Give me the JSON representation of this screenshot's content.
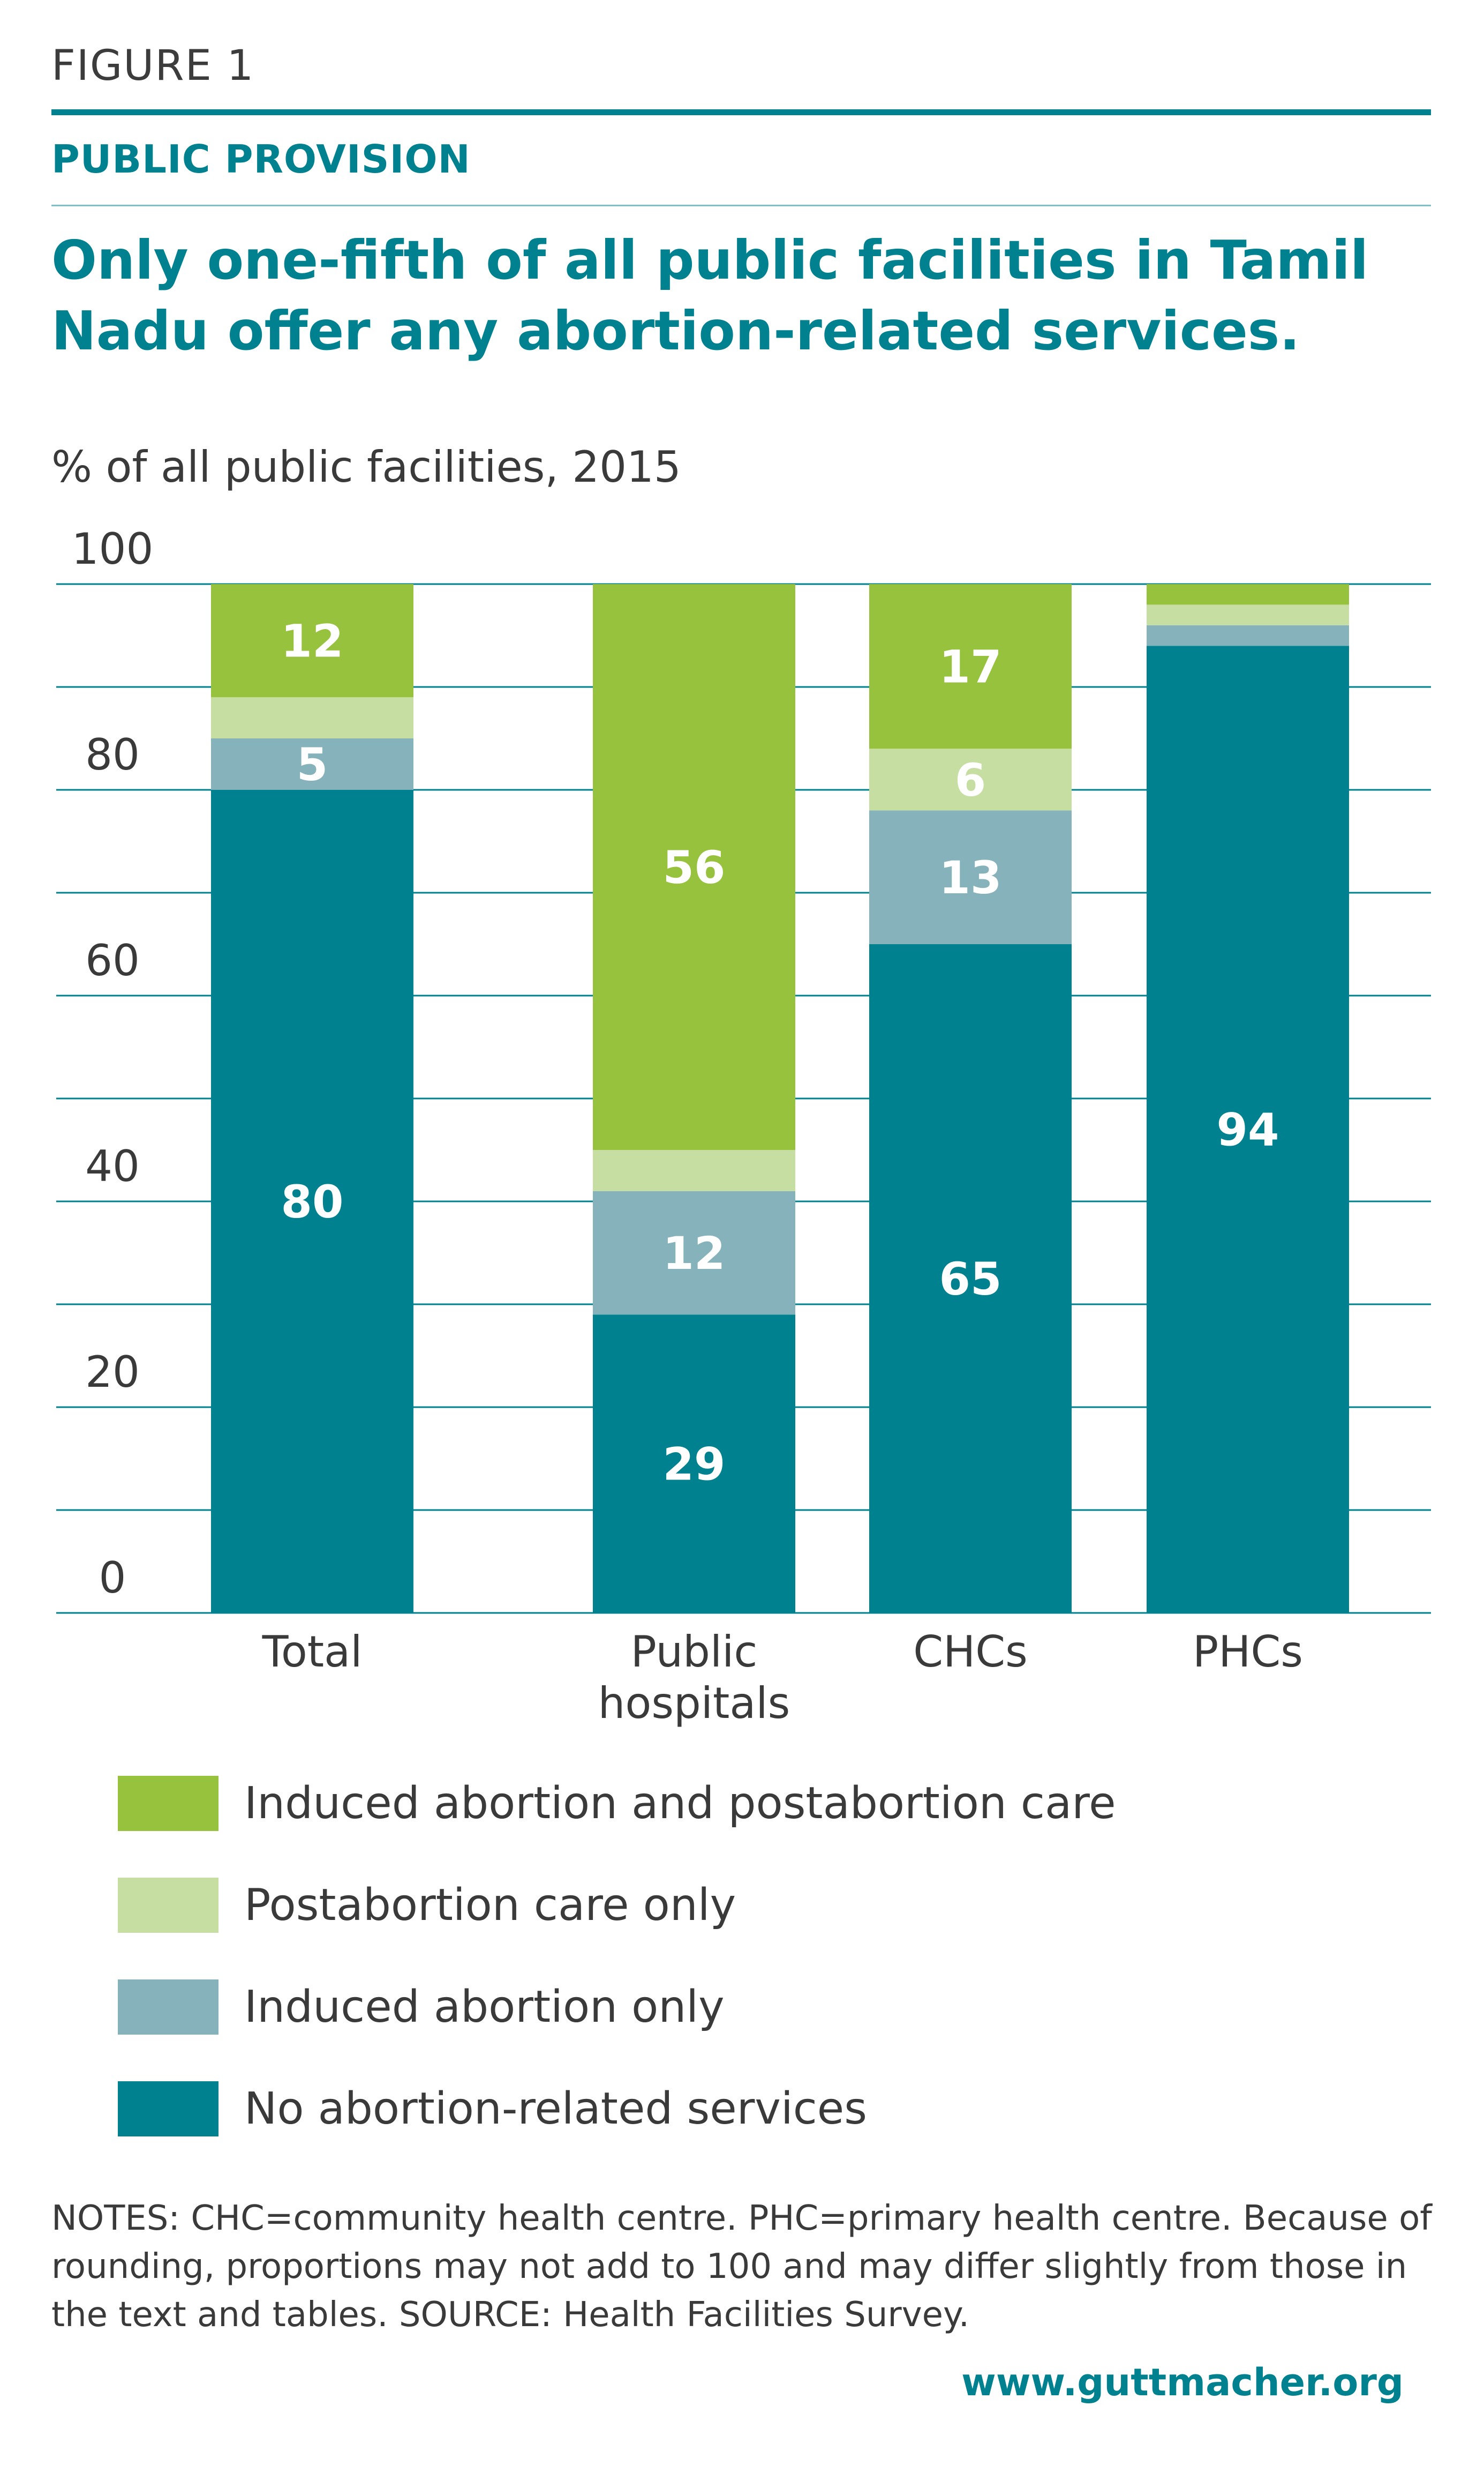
{
  "header": {
    "figure_label": "FIGURE 1",
    "kicker": "PUBLIC PROVISION",
    "title": "Only one-fifth of all public facilities in Tamil Nadu offer any abortion-related services."
  },
  "chart_data": {
    "type": "bar",
    "stacked": true,
    "title": "Only one-fifth of all public facilities in Tamil Nadu offer any abortion-related services.",
    "ylabel": "% of all public facilities, 2015",
    "xlabel": "",
    "ylim": [
      0,
      100
    ],
    "yticks": [
      0,
      20,
      40,
      60,
      80,
      100
    ],
    "grid": true,
    "legend_position": "bottom",
    "categories": [
      "Total",
      "Public hospitals",
      "CHCs",
      "PHCs"
    ],
    "category_lines": [
      [
        "Total"
      ],
      [
        "Public",
        "hospitals"
      ],
      [
        "CHCs"
      ],
      [
        "PHCs"
      ]
    ],
    "series": [
      {
        "name": "No abortion-related services",
        "color": "#00818f",
        "values": [
          80,
          29,
          65,
          94
        ],
        "labels": [
          "80",
          "29",
          "65",
          "94"
        ],
        "label_color": "#ffffff"
      },
      {
        "name": "Induced abortion only",
        "color": "#86b2bc",
        "values": [
          5,
          12,
          13,
          2
        ],
        "labels": [
          "5",
          "12",
          "13",
          ""
        ],
        "label_color": "#ffffff"
      },
      {
        "name": "Postabortion care only",
        "color": "#c6dea1",
        "values": [
          4,
          4,
          6,
          2
        ],
        "labels": [
          "",
          "",
          "6",
          ""
        ],
        "label_color": "#ffffff"
      },
      {
        "name": "Induced abortion and postabortion care",
        "color": "#97c23d",
        "values": [
          12,
          56,
          17,
          2
        ],
        "labels": [
          "12",
          "56",
          "17",
          ""
        ],
        "label_color": "#ffffff"
      }
    ],
    "legend_order": [
      3,
      2,
      1,
      0
    ]
  },
  "notes": "NOTES: CHC=community health centre. PHC=primary health centre. Because of rounding, proportions may not add to 100 and may differ slightly from those in the text and tables. SOURCE: Health Facilities Survey.",
  "website": "www.guttmacher.org"
}
